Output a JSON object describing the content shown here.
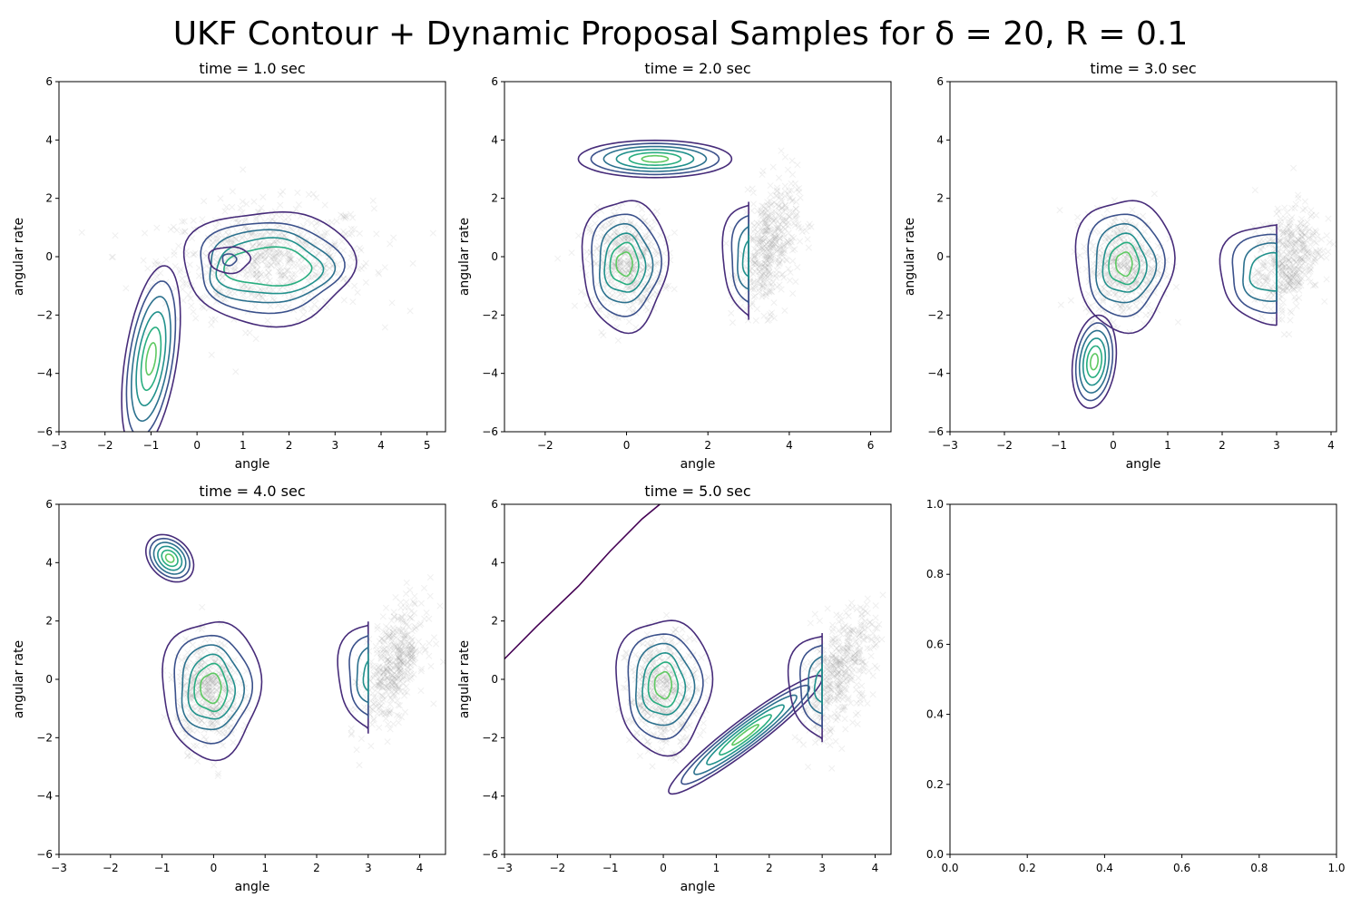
{
  "figure": {
    "suptitle": "UKF Contour + Dynamic Proposal Samples for δ = 20, R = 0.1"
  },
  "chart_data": [
    {
      "type": "contour",
      "title": "time = 1.0 sec",
      "xlabel": "angle",
      "ylabel": "angular rate",
      "xlim": [
        -3,
        5.4
      ],
      "ylim": [
        -6,
        6
      ],
      "xticks": [
        -3,
        -2,
        -1,
        0,
        1,
        2,
        3,
        4,
        5
      ],
      "yticks": [
        -6,
        -4,
        -2,
        0,
        2,
        4,
        6
      ],
      "samples": [
        {
          "cx": 1.5,
          "cy": -0.1,
          "sx": 1.15,
          "sy": 0.95,
          "rho": 0.05,
          "n": 700
        }
      ],
      "gaussians": [
        {
          "mx": -1.0,
          "my": -3.5,
          "sx": 0.22,
          "sy": 1.1,
          "rho": 0.45,
          "levels": 6
        }
      ],
      "blobs": [
        {
          "cx": 1.55,
          "cy": -0.35,
          "rx": [
            1.85,
            1.55,
            1.35,
            1.15,
            0.95
          ],
          "ry": [
            1.95,
            1.55,
            1.25,
            0.95,
            0.65
          ]
        },
        {
          "cx": 0.7,
          "cy": -0.1,
          "rx": [
            0.45,
            0.15
          ],
          "ry": [
            0.45,
            0.2
          ]
        }
      ]
    },
    {
      "type": "contour",
      "title": "time = 2.0 sec",
      "xlabel": "angle",
      "ylabel": "angular rate",
      "xlim": [
        -3,
        6.5
      ],
      "ylim": [
        -6,
        6
      ],
      "xticks": [
        -2,
        0,
        2,
        4,
        6
      ],
      "yticks": [
        -6,
        -4,
        -2,
        0,
        2,
        4,
        6
      ],
      "samples": [
        {
          "cx": 0.0,
          "cy": -0.2,
          "sx": 0.45,
          "sy": 0.85,
          "rho": 0.0,
          "n": 450
        },
        {
          "cx": 3.5,
          "cy": 0.3,
          "sx": 0.35,
          "sy": 1.1,
          "rho": 0.35,
          "n": 450
        }
      ],
      "gaussians": [
        {
          "mx": 0.7,
          "my": 3.35,
          "sx": 0.65,
          "sy": 0.22,
          "rho": 0.0,
          "levels": 6
        }
      ],
      "blobs": [
        {
          "cx": -0.05,
          "cy": -0.25,
          "rx": [
            1.05,
            0.85,
            0.65,
            0.5,
            0.35,
            0.2
          ],
          "ry": [
            2.25,
            1.75,
            1.35,
            1.0,
            0.7,
            0.4
          ]
        },
        {
          "cx": 3.2,
          "cy": -0.05,
          "rx": [
            0.85,
            0.65,
            0.5,
            0.35
          ],
          "ry": [
            2.0,
            1.55,
            1.15,
            0.75
          ],
          "clip": 3.0
        }
      ]
    },
    {
      "type": "contour",
      "title": "time = 3.0 sec",
      "xlabel": "angle",
      "ylabel": "angular rate",
      "xlim": [
        -3,
        4.1
      ],
      "ylim": [
        -6,
        6
      ],
      "xticks": [
        -3,
        -2,
        -1,
        0,
        1,
        2,
        3,
        4
      ],
      "yticks": [
        -6,
        -4,
        -2,
        0,
        2,
        4,
        6
      ],
      "samples": [
        {
          "cx": 0.2,
          "cy": -0.3,
          "sx": 0.35,
          "sy": 0.9,
          "rho": 0.0,
          "n": 450
        },
        {
          "cx": 3.2,
          "cy": -0.1,
          "sx": 0.3,
          "sy": 0.9,
          "rho": 0.35,
          "n": 450
        }
      ],
      "gaussians": [
        {
          "mx": -0.35,
          "my": -3.6,
          "sx": 0.14,
          "sy": 0.55,
          "rho": 0.2,
          "levels": 6
        }
      ],
      "blobs": [
        {
          "cx": 0.2,
          "cy": -0.25,
          "rx": [
            0.9,
            0.7,
            0.55,
            0.4,
            0.28,
            0.15
          ],
          "ry": [
            2.25,
            1.75,
            1.35,
            1.0,
            0.7,
            0.4
          ]
        },
        {
          "cx": 2.9,
          "cy": -0.55,
          "rx": [
            0.95,
            0.75,
            0.55,
            0.4
          ],
          "ry": [
            1.7,
            1.35,
            1.0,
            0.65
          ],
          "clip": 3.0
        }
      ]
    },
    {
      "type": "contour",
      "title": "time = 4.0 sec",
      "xlabel": "angle",
      "ylabel": "angular rate",
      "xlim": [
        -3,
        4.5
      ],
      "ylim": [
        -6,
        6
      ],
      "xticks": [
        -3,
        -2,
        -1,
        0,
        1,
        2,
        3,
        4
      ],
      "yticks": [
        -6,
        -4,
        -2,
        0,
        2,
        4,
        6
      ],
      "samples": [
        {
          "cx": -0.1,
          "cy": -0.5,
          "sx": 0.3,
          "sy": 0.9,
          "rho": 0.0,
          "n": 450
        },
        {
          "cx": 3.5,
          "cy": 0.5,
          "sx": 0.3,
          "sy": 1.0,
          "rho": 0.5,
          "n": 450
        }
      ],
      "gaussians": [
        {
          "mx": -0.85,
          "my": 4.15,
          "sx": 0.16,
          "sy": 0.28,
          "rho": -0.3,
          "levels": 6
        }
      ],
      "blobs": [
        {
          "cx": -0.05,
          "cy": -0.3,
          "rx": [
            0.95,
            0.75,
            0.6,
            0.45,
            0.32,
            0.2
          ],
          "ry": [
            2.35,
            1.85,
            1.45,
            1.1,
            0.8,
            0.5
          ]
        },
        {
          "cx": 3.25,
          "cy": 0.15,
          "rx": [
            0.85,
            0.65,
            0.5,
            0.35
          ],
          "ry": [
            1.9,
            1.45,
            1.05,
            0.7
          ],
          "clip": 3.0
        }
      ]
    },
    {
      "type": "contour",
      "title": "time = 5.0 sec",
      "xlabel": "angle",
      "ylabel": "angular rate",
      "xlim": [
        -3,
        4.3
      ],
      "ylim": [
        -6,
        6
      ],
      "xticks": [
        -3,
        -2,
        -1,
        0,
        1,
        2,
        3,
        4
      ],
      "yticks": [
        -6,
        -4,
        -2,
        0,
        2,
        4,
        6
      ],
      "samples": [
        {
          "cx": 0.0,
          "cy": -0.4,
          "sx": 0.33,
          "sy": 0.95,
          "rho": 0.0,
          "n": 450
        },
        {
          "cx": 3.3,
          "cy": 0.2,
          "sx": 0.35,
          "sy": 1.1,
          "rho": 0.55,
          "n": 450
        }
      ],
      "gaussians": [
        {
          "mx": 1.55,
          "my": -1.9,
          "sx": 0.5,
          "sy": 0.7,
          "rho": 0.95,
          "levels": 6
        }
      ],
      "blobs": [
        {
          "cx": 0.0,
          "cy": -0.2,
          "rx": [
            0.9,
            0.7,
            0.55,
            0.4,
            0.28,
            0.16
          ],
          "ry": [
            2.3,
            1.8,
            1.4,
            1.05,
            0.75,
            0.45
          ]
        },
        {
          "cx": 3.2,
          "cy": -0.2,
          "rx": [
            0.85,
            0.65,
            0.5,
            0.35
          ],
          "ry": [
            1.85,
            1.45,
            1.05,
            0.7
          ],
          "clip": 3.0
        }
      ],
      "line": {
        "x": [
          -3,
          -2.4,
          -1.6,
          -1.0,
          -0.4,
          0.0
        ],
        "y": [
          0.7,
          1.8,
          3.2,
          4.4,
          5.5,
          6.1
        ]
      }
    },
    {
      "type": "empty",
      "title": "",
      "xlim": [
        0,
        1
      ],
      "ylim": [
        0,
        1
      ],
      "xticks": [
        0.0,
        0.2,
        0.4,
        0.6,
        0.8,
        1.0
      ],
      "yticks": [
        0.0,
        0.2,
        0.4,
        0.6,
        0.8,
        1.0
      ]
    }
  ]
}
